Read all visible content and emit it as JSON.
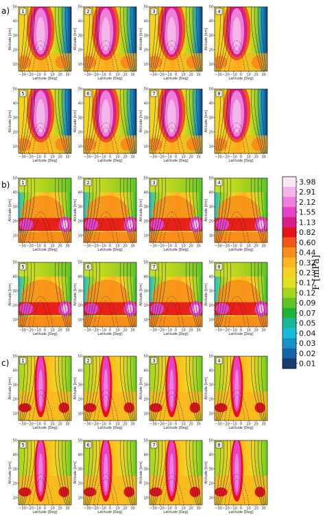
{
  "chart_data": {
    "type": "heatmap",
    "sections": [
      {
        "label": "a)",
        "panels": [
          "1",
          "2",
          "3",
          "4",
          "5",
          "6",
          "7",
          "8"
        ],
        "pattern": "tall_plume"
      },
      {
        "label": "b)",
        "panels": [
          "1",
          "2",
          "3",
          "4",
          "5",
          "6",
          "7",
          "8"
        ],
        "pattern": "low_lobes"
      },
      {
        "label": "c)",
        "panels": [
          "1",
          "2",
          "3",
          "4",
          "5",
          "6",
          "7",
          "8"
        ],
        "pattern": "narrow_plume"
      }
    ],
    "xlabel": "Latitude [Deg]",
    "ylabel": "Altitude [km]",
    "x_ticks": [
      "−30",
      "−20",
      "−10",
      "0",
      "10",
      "20",
      "30"
    ],
    "y_ticks": [
      "10",
      "20",
      "30",
      "40",
      "50"
    ],
    "xlim": [
      -35,
      35
    ],
    "ylim": [
      5,
      50
    ],
    "colorbar": {
      "label": "F [mPa]",
      "levels": [
        "3.98",
        "2.91",
        "2.12",
        "1.55",
        "1.13",
        "0.82",
        "0.60",
        "0.44",
        "0.32",
        "0.23",
        "0.17",
        "0.12",
        "0.09",
        "0.07",
        "0.05",
        "0.04",
        "0.03",
        "0.02",
        "0.01"
      ],
      "colors": [
        "#fbe8f7",
        "#f4b6ea",
        "#ee7fdc",
        "#e843c7",
        "#d81f88",
        "#e4141a",
        "#ef5618",
        "#f88d1a",
        "#fbb51f",
        "#f4d320",
        "#dfe21c",
        "#a2d71e",
        "#5fc527",
        "#1eb537",
        "#18b79b",
        "#14bcd6",
        "#1392cc",
        "#1564a5",
        "#163c72"
      ]
    }
  }
}
